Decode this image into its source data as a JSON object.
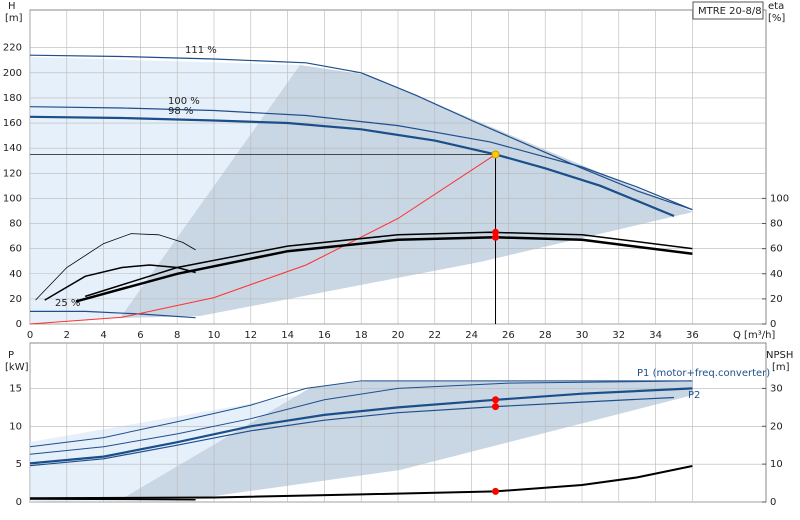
{
  "chart_data": [
    {
      "type": "line",
      "title": "MTRE 20-8/8",
      "y_label": "H",
      "y_unit": "[m]",
      "y2_label": "eta",
      "y2_unit": "[%]",
      "x_label": "Q [m³/h]",
      "xlim": [
        0,
        40
      ],
      "ylim": [
        0,
        250
      ],
      "y2lim": [
        0,
        250
      ],
      "grid": true,
      "xticks": [
        0,
        2,
        4,
        6,
        8,
        10,
        12,
        14,
        16,
        18,
        20,
        22,
        24,
        26,
        28,
        30,
        32,
        34,
        36
      ],
      "yticks": [
        0,
        20,
        40,
        60,
        80,
        100,
        120,
        140,
        160,
        180,
        200,
        220
      ],
      "y2ticks": [
        0,
        20,
        40,
        60,
        80,
        100
      ],
      "series": [
        {
          "name": "111 %",
          "color": "#1f4e8c",
          "width": 1.2,
          "x": [
            0,
            5,
            10,
            15,
            18,
            21,
            24,
            27,
            30,
            33,
            36
          ],
          "values": [
            214,
            213,
            211,
            208,
            200,
            182,
            162,
            143,
            124,
            106,
            91
          ]
        },
        {
          "name": "100 %",
          "color": "#1f4e8c",
          "width": 1.2,
          "x": [
            0,
            5,
            10,
            15,
            20,
            25,
            30,
            33,
            36
          ],
          "values": [
            173,
            172,
            170,
            166,
            158,
            145,
            125,
            109,
            91
          ]
        },
        {
          "name": "98 %",
          "color": "#1a4f8a",
          "width": 2.2,
          "x": [
            0,
            5,
            10,
            14,
            18,
            22,
            25.3,
            28,
            31,
            35
          ],
          "values": [
            165,
            164,
            162,
            160,
            155,
            146,
            135,
            124,
            110,
            86
          ]
        },
        {
          "name": "25 %",
          "color": "#1f4e8c",
          "width": 1.2,
          "x": [
            0,
            3,
            6,
            9
          ],
          "values": [
            10,
            10,
            8,
            5
          ]
        },
        {
          "color": "#ff3030",
          "width": 1,
          "x": [
            0,
            5,
            10,
            15,
            20,
            25.3
          ],
          "values": [
            0,
            5.3,
            21,
            47,
            84,
            135
          ]
        },
        {
          "color": "#000000",
          "width": 1.5,
          "axis": "y2",
          "x": [
            3,
            8,
            14,
            20,
            25,
            30,
            36
          ],
          "values": [
            22,
            45,
            62,
            71,
            73,
            71,
            60
          ]
        },
        {
          "color": "#000000",
          "width": 2.5,
          "axis": "y2",
          "x": [
            2.5,
            8,
            14,
            20,
            25.3,
            30,
            36
          ],
          "values": [
            18,
            40,
            58,
            67,
            69,
            67,
            56
          ]
        },
        {
          "color": "#000000",
          "width": 1.5,
          "axis": "y2",
          "x": [
            0.8,
            3,
            5,
            6.5,
            8,
            9
          ],
          "values": [
            19,
            38,
            45,
            47,
            45,
            41
          ]
        },
        {
          "color": "#000000",
          "width": 0.8,
          "axis": "y2",
          "x": [
            0.3,
            2,
            4,
            5.5,
            7,
            8.3,
            9
          ],
          "values": [
            19,
            45,
            64,
            72,
            71,
            65,
            59
          ]
        }
      ],
      "points": [
        {
          "x": 25.3,
          "y": 135,
          "color": "#ffcc00",
          "crosshair": true
        },
        {
          "x": 25.3,
          "y": 73,
          "color": "#ff0000"
        },
        {
          "x": 25.3,
          "y": 69,
          "color": "#ff0000"
        }
      ]
    },
    {
      "type": "line",
      "y_label": "P",
      "y_unit": "[kW]",
      "y2_label": "NPSH",
      "y2_unit": "[m]",
      "xlim": [
        0,
        40
      ],
      "ylim": [
        0,
        21
      ],
      "y2lim": [
        0,
        42
      ],
      "grid": true,
      "yticks": [
        0,
        5,
        10,
        15
      ],
      "y2ticks": [
        0,
        10,
        20,
        30
      ],
      "series": [
        {
          "name": "P1 (motor+freq.converter)",
          "color": "#1a4f8a",
          "width": 2.2,
          "x": [
            0,
            4,
            8,
            12,
            16,
            20,
            25.3,
            30,
            36
          ],
          "values": [
            5.1,
            6,
            7.9,
            10,
            11.5,
            12.5,
            13.5,
            14.3,
            15
          ]
        },
        {
          "name": "P2",
          "color": "#1f4e8c",
          "width": 1.2,
          "x": [
            0,
            4,
            8,
            12,
            16,
            20,
            25.3,
            30,
            35
          ],
          "values": [
            4.8,
            5.7,
            7.5,
            9.4,
            10.8,
            11.8,
            12.6,
            13.2,
            13.8
          ]
        },
        {
          "color": "#1f4e8c",
          "width": 1,
          "x": [
            0,
            4,
            8,
            12,
            15,
            18,
            36
          ],
          "values": [
            7.3,
            8.5,
            10.6,
            12.8,
            15,
            16,
            16
          ]
        },
        {
          "color": "#1f4e8c",
          "width": 1,
          "x": [
            0,
            4,
            8,
            12,
            16,
            20,
            26,
            36
          ],
          "values": [
            6.3,
            7.3,
            9,
            11,
            13.5,
            15,
            15.7,
            16
          ]
        },
        {
          "color": "#000000",
          "width": 2,
          "axis": "y2",
          "x": [
            0,
            10,
            18,
            25.3,
            30,
            33,
            36
          ],
          "values": [
            1,
            1.2,
            2,
            2.8,
            4.5,
            6.5,
            9.5
          ]
        },
        {
          "color": "#000000",
          "width": 1.5,
          "x": [
            0,
            5,
            9
          ],
          "values": [
            0.4,
            0.35,
            0.3
          ]
        }
      ],
      "points": [
        {
          "x": 25.3,
          "y": 13.5,
          "color": "#ff0000"
        },
        {
          "x": 25.3,
          "y": 12.6,
          "color": "#ff0000"
        },
        {
          "x": 25.3,
          "y": 2.8,
          "color": "#ff0000",
          "axis": "y2"
        }
      ]
    }
  ]
}
